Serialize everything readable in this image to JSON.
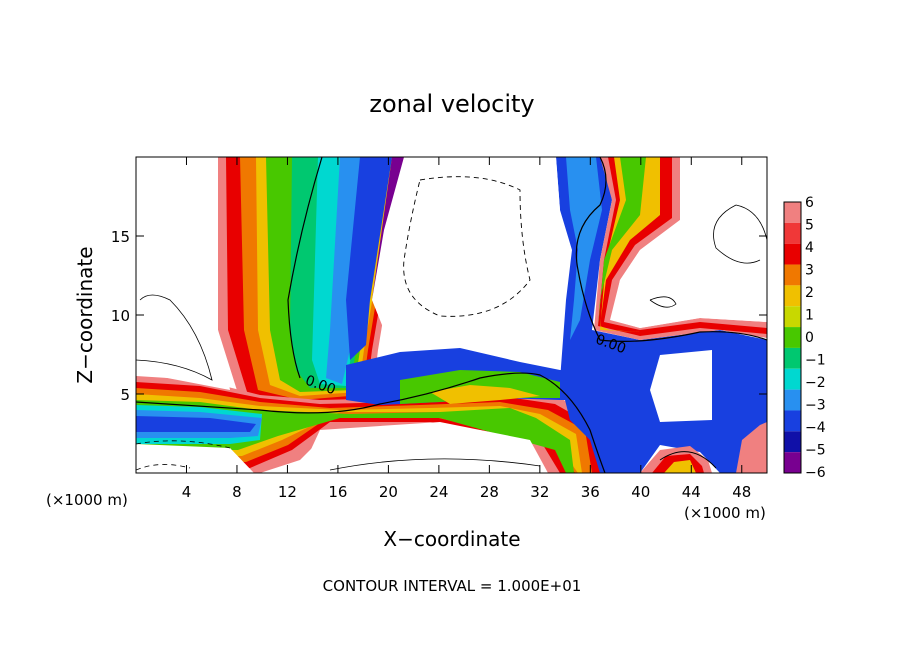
{
  "chart_data": {
    "type": "heatmap",
    "title": "zonal velocity",
    "xlabel": "X−coordinate",
    "ylabel": "Z−coordinate",
    "x_unit_left": "(×1000 m)",
    "x_unit_right": "(×1000 m)",
    "footer": "CONTOUR INTERVAL = 1.000E+01",
    "xlim": [
      0,
      50
    ],
    "ylim": [
      0,
      20
    ],
    "x_ticks": [
      4,
      8,
      12,
      16,
      20,
      24,
      28,
      32,
      36,
      40,
      44,
      48
    ],
    "x_tick_labels": [
      "4",
      "8",
      "12",
      "16",
      "20",
      "24",
      "28",
      "32",
      "36",
      "40",
      "44",
      "48"
    ],
    "y_ticks": [
      5,
      10,
      15
    ],
    "y_tick_labels": [
      "5",
      "10",
      "15"
    ],
    "contour_labels": [
      {
        "text": "0.00",
        "x": 14.5,
        "z": 5.3
      },
      {
        "text": "0.00",
        "x": 37.5,
        "z": 7.9
      }
    ],
    "colorbar": {
      "values": [
        6,
        5,
        4,
        3,
        2,
        1,
        0,
        -1,
        -2,
        -3,
        -4,
        -5,
        -6
      ],
      "labels": [
        "6",
        "5",
        "4",
        "3",
        "2",
        "1",
        "0",
        "−1",
        "−2",
        "−3",
        "−4",
        "−5",
        "−6"
      ],
      "colors": [
        "#f08080",
        "#f03838",
        "#e80000",
        "#f07800",
        "#f0c000",
        "#c8d800",
        "#48c800",
        "#00c870",
        "#00d8d0",
        "#2890f0",
        "#1840e0",
        "#1010a8",
        "#780090"
      ]
    },
    "grid": false,
    "legend": "right"
  }
}
